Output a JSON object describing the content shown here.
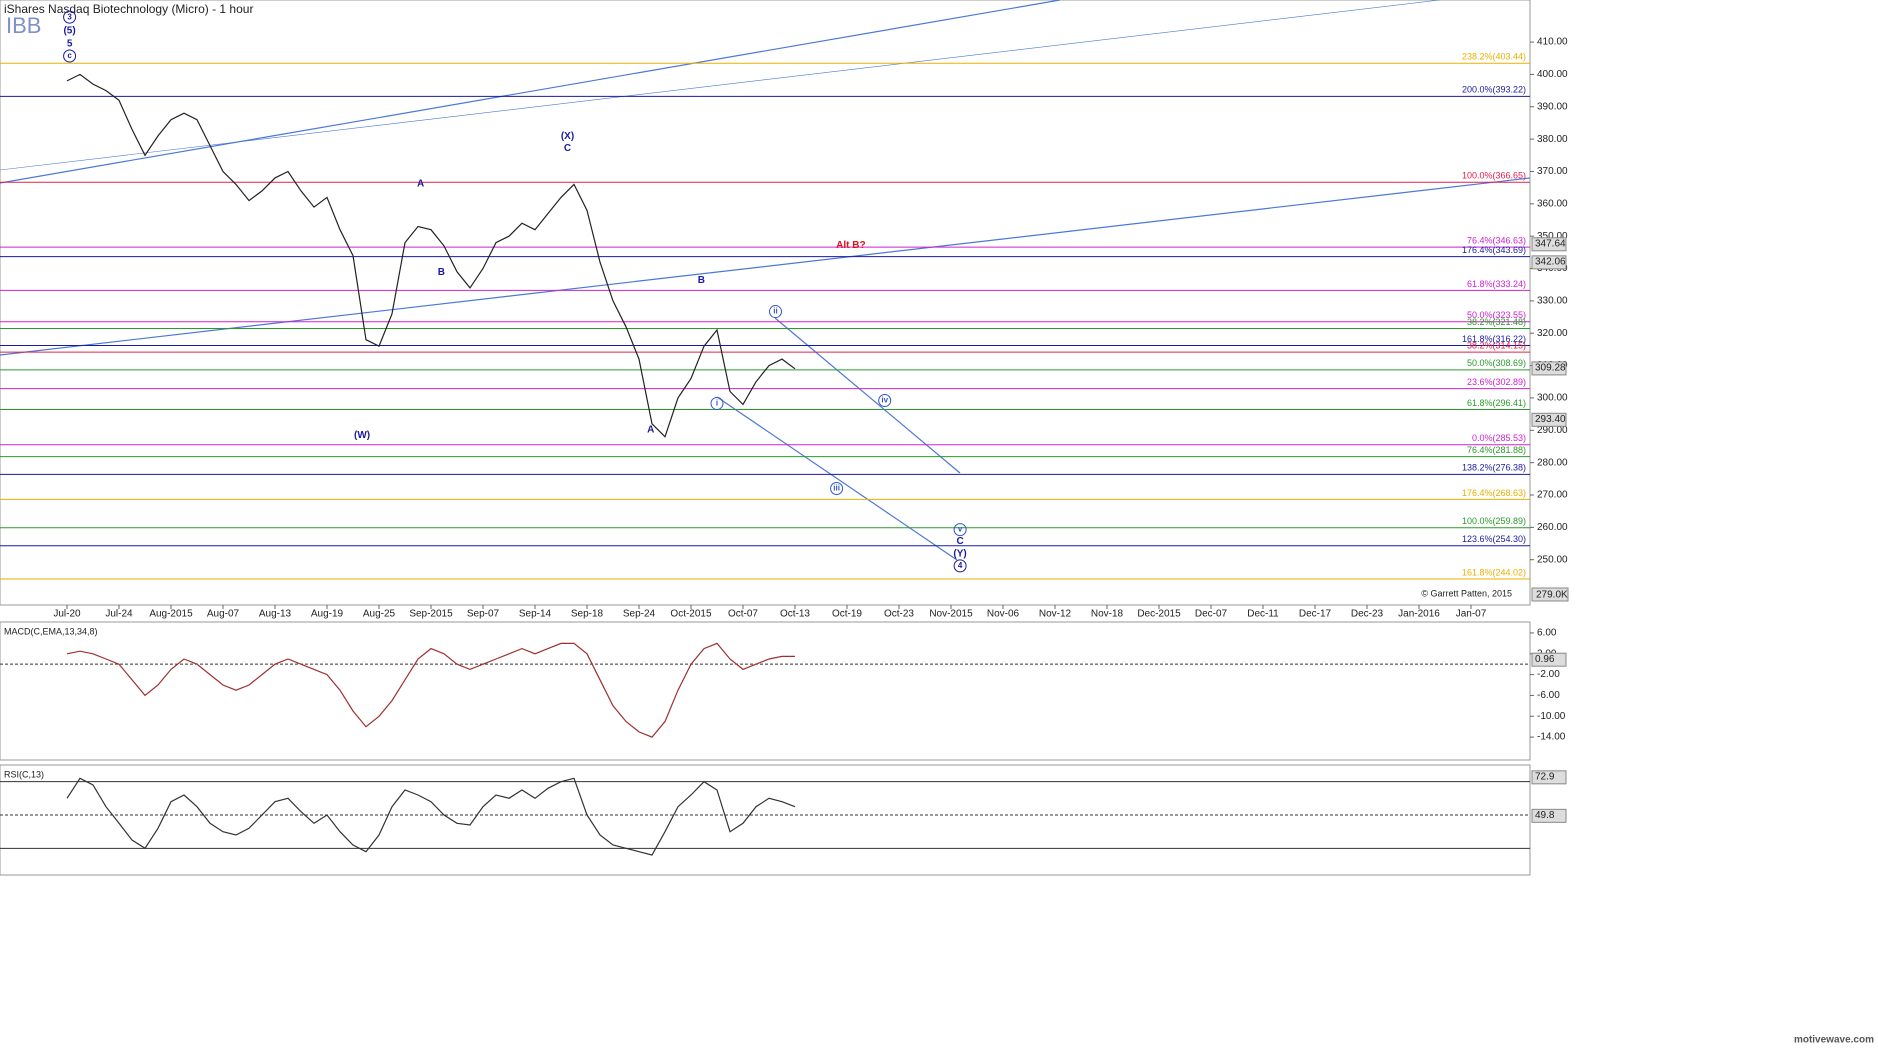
{
  "header": {
    "title": "iShares Nasdaq Biotechnology (Micro) - 1 hour",
    "symbol": "IBB",
    "copyright": "© Garrett Patten, 2015",
    "site": "motivewave.com",
    "volume_badge": "279.0K"
  },
  "chart_data": [
    {
      "type": "line",
      "name": "price",
      "color": "#222",
      "categories": [
        "Jul-20",
        null,
        null,
        null,
        "Jul-24",
        null,
        null,
        null,
        "Aug-2015",
        null,
        null,
        null,
        "Aug-07",
        null,
        null,
        null,
        "Aug-13",
        null,
        null,
        null,
        "Aug-19",
        null,
        null,
        null,
        "Aug-25",
        null,
        null,
        null,
        "Sep-2015",
        null,
        null,
        null,
        "Sep-07",
        null,
        null,
        null,
        "Sep-14",
        null,
        null,
        null,
        "Sep-18",
        null,
        null,
        null,
        "Sep-24",
        null,
        null,
        null,
        "Oct-2015",
        null,
        null,
        null,
        "Oct-07",
        null,
        null,
        null,
        "Oct-13",
        null,
        null,
        null,
        "Oct-19",
        null,
        null,
        null,
        "Oct-23",
        null,
        null,
        null,
        "Nov-2015",
        null,
        null,
        null,
        "Nov-06",
        null,
        null,
        null,
        "Nov-12",
        null,
        null,
        null,
        "Nov-18",
        null,
        null,
        null,
        "Dec-2015",
        null,
        null,
        null,
        "Dec-07",
        null,
        null,
        null,
        "Dec-11",
        null,
        null,
        null,
        "Dec-17",
        null,
        null,
        null,
        "Dec-23",
        null,
        null,
        null,
        "Jan-2016",
        null,
        null,
        null,
        "Jan-07"
      ],
      "values": [
        398,
        400,
        397,
        395,
        392,
        383,
        375,
        381,
        386,
        388,
        386,
        378,
        370,
        366,
        361,
        364,
        368,
        370,
        364,
        359,
        362,
        352,
        344,
        318,
        316,
        326,
        348,
        353,
        352,
        347,
        339,
        334,
        340,
        348,
        350,
        354,
        352,
        357,
        362,
        366,
        358,
        342,
        330,
        322,
        312,
        292,
        288,
        300,
        306,
        316,
        321,
        302,
        298,
        305,
        310,
        312,
        309,
        null,
        null,
        null,
        null,
        null,
        null,
        null,
        null,
        null,
        null,
        null,
        null,
        null,
        null,
        null,
        null,
        null,
        null,
        null,
        null,
        null,
        null,
        null,
        null,
        null,
        null,
        null,
        null,
        null,
        null,
        null,
        null,
        null,
        null,
        null,
        null,
        null,
        null,
        null,
        null,
        null,
        null,
        null,
        null,
        null,
        null,
        null,
        null,
        null,
        null,
        null,
        null
      ],
      "ylim": [
        236,
        423
      ],
      "yticks": [
        {
          "value": 250,
          "label": "250.00"
        },
        {
          "value": 260,
          "label": "260.00"
        },
        {
          "value": 270,
          "label": "270.00"
        },
        {
          "value": 280,
          "label": "280.00"
        },
        {
          "value": 290,
          "label": "290.00"
        },
        {
          "value": 300,
          "label": "300.00"
        },
        {
          "value": 310,
          "label": "310.00"
        },
        {
          "value": 320,
          "label": "320.00"
        },
        {
          "value": 330,
          "label": "330.00"
        },
        {
          "value": 340,
          "label": "340.00"
        },
        {
          "value": 350,
          "label": "350.00"
        },
        {
          "value": 360,
          "label": "360.00"
        },
        {
          "value": 370,
          "label": "370.00"
        },
        {
          "value": 380,
          "label": "380.00"
        },
        {
          "value": 390,
          "label": "390.00"
        },
        {
          "value": 400,
          "label": "400.00"
        },
        {
          "value": 410,
          "label": "410.00"
        }
      ],
      "badges": [
        347.64,
        342.06,
        309.28,
        {
          "value": 293.4,
          "label": "293.40"
        }
      ],
      "levels": [
        {
          "label": "238.2%(403.44)",
          "value": 403.44,
          "color": "#e8b000"
        },
        {
          "label": "200.0%(393.22)",
          "value": 393.22,
          "color": "#1a1aa0"
        },
        {
          "label": "100.0%(366.65)",
          "value": 366.65,
          "color": "#e0204a"
        },
        {
          "label": "76.4%(346.63)",
          "value": 346.63,
          "color": "#d020d0"
        },
        {
          "label": "176.4%(343.69)",
          "value": 343.69,
          "color": "#1a1aa0"
        },
        {
          "label": "61.8%(333.24)",
          "value": 333.24,
          "color": "#d020d0"
        },
        {
          "label": "50.0%(323.55)",
          "value": 323.55,
          "color": "#d020d0"
        },
        {
          "label": "38.2%(321.48)",
          "value": 321.48,
          "color": "#2a9a2a"
        },
        {
          "label": "161.8%(316.22)",
          "value": 316.22,
          "color": "#1a1aa0"
        },
        {
          "label": "38.2%(314.15)",
          "value": 314.15,
          "color": "#e0204a"
        },
        {
          "label": "50.0%(308.69)",
          "value": 308.69,
          "color": "#2a9a2a"
        },
        {
          "label": "23.6%(302.89)",
          "value": 302.89,
          "color": "#d020d0"
        },
        {
          "label": "61.8%(296.41)",
          "value": 296.41,
          "color": "#2a9a2a"
        },
        {
          "label": "0.0%(285.53)",
          "value": 285.53,
          "color": "#d020d0"
        },
        {
          "label": "76.4%(281.88)",
          "value": 281.88,
          "color": "#2a9a2a"
        },
        {
          "label": "138.2%(276.38)",
          "value": 276.38,
          "color": "#1a1aa0"
        },
        {
          "label": "176.4%(268.63)",
          "value": 268.63,
          "color": "#e8b000"
        },
        {
          "label": "100.0%(259.89)",
          "value": 259.89,
          "color": "#2a9a2a"
        },
        {
          "label": "123.6%(254.30)",
          "value": 254.3,
          "color": "#1a1aa0"
        },
        {
          "label": "161.8%(244.02)",
          "value": 244.02,
          "color": "#e8b000"
        }
      ],
      "annotations": [
        {
          "text": "3",
          "at": 0.2,
          "price": 417.7,
          "color": "#1a1aa0",
          "circle": true
        },
        {
          "text": "(5)",
          "at": 0.2,
          "price": 413.4,
          "color": "#1a1aa0"
        },
        {
          "text": "5",
          "at": 0.2,
          "price": 409.4,
          "color": "#1a1aa0"
        },
        {
          "text": "c",
          "at": 0.2,
          "price": 405.7,
          "color": "#1a1aa0",
          "circle": true
        },
        {
          "text": "(X)",
          "at": 38.5,
          "price": 380.9,
          "color": "#1a1aa0"
        },
        {
          "text": "C",
          "at": 38.5,
          "price": 377.2,
          "color": "#1a1aa0"
        },
        {
          "text": "A",
          "at": 27.2,
          "price": 366.1,
          "color": "#1a1aa0"
        },
        {
          "text": "B",
          "at": 28.8,
          "price": 338.8,
          "color": "#1a1aa0"
        },
        {
          "text": "(W)",
          "at": 22.7,
          "price": 288.4,
          "color": "#1a1aa0"
        },
        {
          "text": "A",
          "at": 44.9,
          "price": 290.2,
          "color": "#1a1aa0"
        },
        {
          "text": "B",
          "at": 48.8,
          "price": 336.3,
          "color": "#1a1aa0"
        },
        {
          "text": "Alt B?",
          "at": 60.3,
          "price": 347.2,
          "color": "#e0101a"
        },
        {
          "text": "i",
          "at": 50,
          "price": 298.3,
          "color": "#3355cc",
          "circle": true
        },
        {
          "text": "ii",
          "at": 54.5,
          "price": 326.7,
          "color": "#3355cc",
          "circle": true
        },
        {
          "text": "iii",
          "at": 59.2,
          "price": 272,
          "color": "#3355cc",
          "circle": true
        },
        {
          "text": "iv",
          "at": 62.9,
          "price": 299.2,
          "color": "#3355cc",
          "circle": true
        },
        {
          "text": "v",
          "at": 68.7,
          "price": 259.3,
          "color": "#3355cc",
          "circle": true
        },
        {
          "text": "C",
          "at": 68.7,
          "price": 255.6,
          "color": "#1a1aa0"
        },
        {
          "text": "(Y)",
          "at": 68.7,
          "price": 251.8,
          "color": "#1a1aa0"
        },
        {
          "text": "4",
          "at": 68.7,
          "price": 248.1,
          "color": "#1a1aa0",
          "circle": true
        }
      ]
    },
    {
      "type": "line",
      "name": "MACD(C,EMA,13,34,8)",
      "color": "#a03030",
      "values": [
        2,
        2.5,
        2,
        1,
        0,
        -3,
        -6,
        -4,
        -1,
        1,
        0,
        -2,
        -4,
        -5,
        -4,
        -2,
        0,
        1,
        0,
        -1,
        -2,
        -5,
        -9,
        -12,
        -10,
        -7,
        -3,
        1,
        3,
        2,
        0,
        -1,
        0,
        1,
        2,
        3,
        2,
        3,
        4,
        4,
        2,
        -3,
        -8,
        -11,
        -13,
        -14,
        -11,
        -5,
        0,
        3,
        4,
        1,
        -1,
        0,
        1,
        1.5,
        1.5
      ],
      "ylim": [
        -18.4,
        8.1
      ],
      "yticks": [
        {
          "value": 6,
          "label": "6.00"
        },
        {
          "value": 2,
          "label": "2.00"
        },
        {
          "value": -2,
          "label": "-2.00"
        },
        {
          "value": -6,
          "label": "-6.00"
        },
        {
          "value": -10,
          "label": "-10.00"
        },
        {
          "value": -14,
          "label": "-14.00"
        }
      ],
      "badges": [
        0.96
      ],
      "levels": [
        0
      ]
    },
    {
      "type": "line",
      "name": "RSI(C,13)",
      "color": "#333",
      "values": [
        60,
        72,
        68,
        55,
        45,
        35,
        30,
        42,
        58,
        62,
        55,
        45,
        40,
        38,
        42,
        50,
        58,
        60,
        52,
        45,
        50,
        40,
        32,
        28,
        38,
        55,
        65,
        62,
        58,
        50,
        45,
        44,
        55,
        62,
        60,
        65,
        60,
        66,
        70,
        72,
        50,
        38,
        32,
        30,
        28,
        26,
        40,
        55,
        62,
        70,
        65,
        40,
        45,
        55,
        60,
        58,
        55
      ],
      "ylim": [
        14,
        80
      ],
      "badges": [
        72.9,
        49.8
      ],
      "levels": [
        70,
        50,
        30
      ]
    }
  ]
}
